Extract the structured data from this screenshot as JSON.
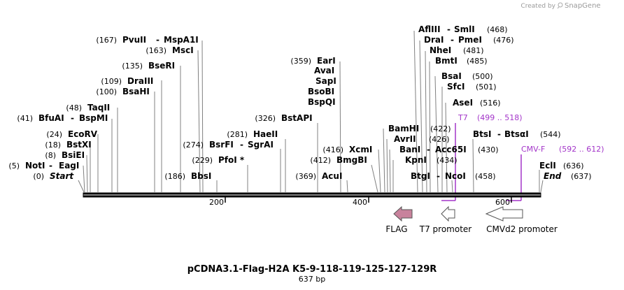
{
  "brand": {
    "created_by": "Created by",
    "name": "SnapGene"
  },
  "title": "pCDNA3.1-Flag-H2A K5-9-118-119-125-127-129R",
  "length_label": "637 bp",
  "ticks": [
    "200",
    "400",
    "600"
  ],
  "enzymes": {
    "start": {
      "pos": "(0)",
      "name": "Start"
    },
    "noti": {
      "pos": "(5)",
      "name": "NotI",
      "alt": "EagI"
    },
    "bsiei": {
      "pos": "(8)",
      "name": "BsiEI"
    },
    "bstxi": {
      "pos": "(18)",
      "name": "BstXI"
    },
    "ecorv": {
      "pos": "(24)",
      "name": "EcoRV"
    },
    "bfuai": {
      "pos": "(41)",
      "name": "BfuAI",
      "alt": "BspMI"
    },
    "taqii": {
      "pos": "(48)",
      "name": "TaqII"
    },
    "bsahi": {
      "pos": "(100)",
      "name": "BsaHI"
    },
    "draiii": {
      "pos": "(109)",
      "name": "DraIII"
    },
    "beseri": {
      "pos": "(135)",
      "name": "BseRI"
    },
    "msci": {
      "pos": "(163)",
      "name": "MscI"
    },
    "pvuii": {
      "pos": "(167)",
      "name": "PvuII",
      "alt": "MspA1I"
    },
    "bbsi": {
      "pos": "(186)",
      "name": "BbsI"
    },
    "pfoi": {
      "pos": "(229)",
      "name": "PfoI *"
    },
    "bsrfi": {
      "pos": "(274)",
      "name": "BsrFI",
      "alt": "SgrAI"
    },
    "haeii": {
      "pos": "(281)",
      "name": "HaeII"
    },
    "bstapi": {
      "pos": "(326)",
      "name": "BstAPI"
    },
    "eari": {
      "pos": "(359)",
      "name": "EarI"
    },
    "avai": {
      "name": "AvaI"
    },
    "sapi": {
      "name": "SapI"
    },
    "bsobi": {
      "name": "BsoBI"
    },
    "bspqi": {
      "name": "BspQI"
    },
    "acui": {
      "pos": "(369)",
      "name": "AcuI"
    },
    "bmgbi": {
      "pos": "(412)",
      "name": "BmgBI"
    },
    "xcmi": {
      "pos": "(416)",
      "name": "XcmI"
    },
    "bamhi": {
      "pos": "(422)",
      "name": "BamHI"
    },
    "avrii": {
      "pos": "(426)",
      "name": "AvrII"
    },
    "bani": {
      "pos": "(430)",
      "name": "BanI",
      "alt": "Acc65I"
    },
    "kpni": {
      "pos": "(434)",
      "name": "KpnI"
    },
    "btgi": {
      "pos": "(458)",
      "name": "BtgI",
      "alt": "NcoI"
    },
    "aflii": {
      "pos": "(468)",
      "name": "AflIII",
      "alt": "SmlI"
    },
    "drai": {
      "pos": "(476)",
      "name": "DraI",
      "alt": "PmeI"
    },
    "nhei": {
      "pos": "(481)",
      "name": "NheI"
    },
    "bmti": {
      "pos": "(485)",
      "name": "BmtI"
    },
    "bsai": {
      "pos": "(500)",
      "name": "BsaI"
    },
    "sfci": {
      "pos": "(501)",
      "name": "SfcI"
    },
    "asei": {
      "pos": "(516)",
      "name": "AseI"
    },
    "btsi": {
      "pos": "(544)",
      "name": "BtsI",
      "alt": "BtsαI"
    },
    "ecli": {
      "pos": "(636)",
      "name": "EclI"
    },
    "end": {
      "pos": "(637)",
      "name": "End"
    }
  },
  "primers": {
    "t7": {
      "name": "T7",
      "range": "(499 .. 518)"
    },
    "cmvf": {
      "name": "CMV-F",
      "range": "(592 .. 612)"
    }
  },
  "features": {
    "flag": {
      "label": "FLAG",
      "color": "#c8829c"
    },
    "t7_promoter": {
      "label": "T7 promoter",
      "color": "#ffffff"
    },
    "cmvd2_promoter": {
      "label": "CMVd2 promoter",
      "color": "#ffffff"
    }
  },
  "colors": {
    "primer": "#a335c9",
    "leader": "#808080",
    "backbone": "#000000"
  }
}
